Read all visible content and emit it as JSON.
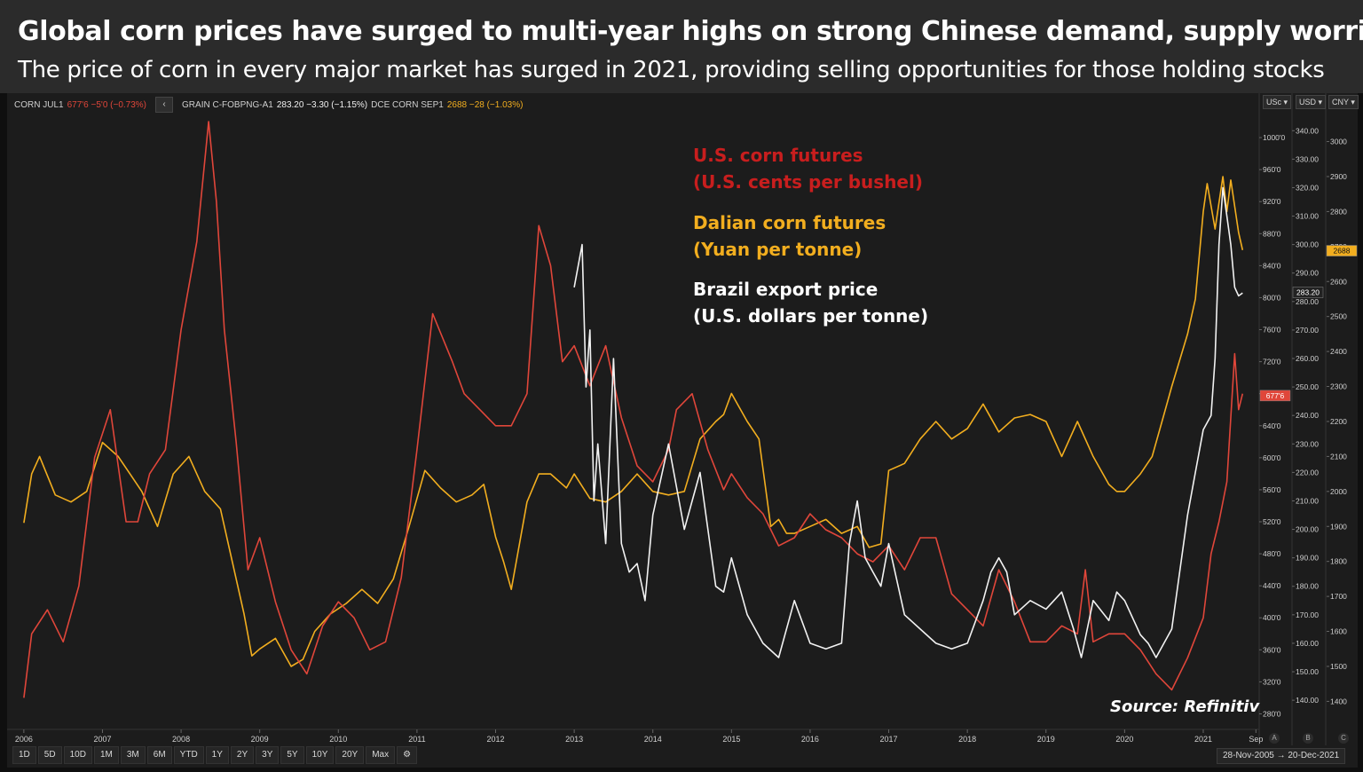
{
  "header": {
    "title": "Global corn prices have surged to multi-year highs on strong Chinese demand, supply worries",
    "subtitle": "The price of corn in every major market has surged in 2021, providing selling opportunities for those holding stocks"
  },
  "legend_bar": {
    "corn_symbol": "CORN JUL1",
    "corn_values": "677'6 −5'0 (−0.73%)",
    "collapse_icon": "chevron-left-icon",
    "grain_symbol": "GRAIN C-FOBPNG-A1",
    "grain_values": "283.20 −3.30 (−1.15%)",
    "dce_symbol": "DCE CORN SEP1",
    "dce_values": "2688 −28 (−1.03%)"
  },
  "annotations": {
    "us_line1": "U.S. corn futures",
    "us_line2": "(U.S. cents per bushel)",
    "dalian_line1": "Dalian corn futures",
    "dalian_line2": "(Yuan per tonne)",
    "brazil_line1": "Brazil export price",
    "brazil_line2": "(U.S. dollars per tonne)",
    "source": "Source: Refinitiv"
  },
  "axes_heads": {
    "a": "USc",
    "b": "USD",
    "c": "CNY"
  },
  "axes_feet": {
    "a": "A",
    "b": "B",
    "c": "C"
  },
  "range_buttons": [
    "1D",
    "5D",
    "10D",
    "1M",
    "3M",
    "6M",
    "YTD",
    "1Y",
    "2Y",
    "3Y",
    "5Y",
    "10Y",
    "20Y",
    "Max"
  ],
  "settings_icon": "gear-icon",
  "date_range": "28-Nov-2005  →  20-Dec-2021",
  "colors": {
    "us": "#e0463a",
    "dalian": "#f2ae1f",
    "brazil": "#f2f2f2",
    "us_label": "#c81e1e",
    "dalian_label": "#f2ae1f",
    "brazil_label": "#ffffff"
  },
  "chart_data": {
    "type": "line",
    "x_tick_labels": [
      "2006",
      "2007",
      "2008",
      "2009",
      "2010",
      "2011",
      "2012",
      "2013",
      "2014",
      "2015",
      "2016",
      "2017",
      "2018",
      "2019",
      "2020",
      "2021",
      "Sep"
    ],
    "x_range": [
      2005.9,
      2021.7
    ],
    "grid": false,
    "axes": {
      "usc": {
        "ticks": [
          "2800",
          "3200",
          "3600",
          "4000",
          "4400",
          "4800",
          "5200",
          "5600",
          "6000",
          "6400",
          "6800",
          "7200",
          "7600",
          "8000",
          "8400",
          "8800",
          "9200",
          "9600",
          "10000"
        ],
        "range": [
          2650,
          10300
        ],
        "last_label": "677'6"
      },
      "usd": {
        "ticks": [
          "140.00",
          "150.00",
          "160.00",
          "170.00",
          "180.00",
          "190.00",
          "200.00",
          "210.00",
          "220.00",
          "230.00",
          "240.00",
          "250.00",
          "260.00",
          "270.00",
          "280.00",
          "290.00",
          "300.00",
          "310.00",
          "320.00",
          "330.00",
          "340.00"
        ],
        "range": [
          131,
          346
        ],
        "last_label": "283.20"
      },
      "cny": {
        "ticks": [
          "1400",
          "1500",
          "1600",
          "1700",
          "1800",
          "1900",
          "2000",
          "2100",
          "2200",
          "2300",
          "2400",
          "2500",
          "2600",
          "2700",
          "2800",
          "2900",
          "3000"
        ],
        "range": [
          1330,
          3080
        ],
        "last_label": "2688"
      }
    },
    "series": [
      {
        "name": "CORN JUL1",
        "axis": "usc",
        "x": [
          2006.0,
          2006.1,
          2006.3,
          2006.5,
          2006.7,
          2006.9,
          2007.1,
          2007.3,
          2007.45,
          2007.6,
          2007.8,
          2008.0,
          2008.2,
          2008.35,
          2008.45,
          2008.55,
          2008.7,
          2008.85,
          2009.0,
          2009.2,
          2009.4,
          2009.6,
          2009.8,
          2010.0,
          2010.2,
          2010.4,
          2010.6,
          2010.8,
          2011.0,
          2011.2,
          2011.45,
          2011.6,
          2011.8,
          2012.0,
          2012.2,
          2012.4,
          2012.55,
          2012.7,
          2012.85,
          2013.0,
          2013.2,
          2013.4,
          2013.6,
          2013.8,
          2014.0,
          2014.2,
          2014.3,
          2014.5,
          2014.7,
          2014.9,
          2015.0,
          2015.2,
          2015.4,
          2015.6,
          2015.8,
          2016.0,
          2016.2,
          2016.4,
          2016.6,
          2016.8,
          2017.0,
          2017.2,
          2017.4,
          2017.6,
          2017.8,
          2018.0,
          2018.2,
          2018.4,
          2018.6,
          2018.8,
          2019.0,
          2019.2,
          2019.4,
          2019.5,
          2019.6,
          2019.8,
          2020.0,
          2020.2,
          2020.4,
          2020.6,
          2020.8,
          2021.0,
          2021.1,
          2021.2,
          2021.3,
          2021.35,
          2021.4,
          2021.45,
          2021.5
        ],
        "y": [
          3000,
          3800,
          4100,
          3700,
          4400,
          6000,
          6600,
          5200,
          5200,
          5800,
          6100,
          7600,
          8700,
          10200,
          9200,
          7600,
          6200,
          4600,
          5000,
          4200,
          3600,
          3300,
          3900,
          4200,
          4000,
          3600,
          3700,
          4500,
          6100,
          7800,
          7200,
          6800,
          6600,
          6400,
          6400,
          6800,
          8900,
          8400,
          7200,
          7400,
          6900,
          7400,
          6500,
          5900,
          5700,
          6100,
          6600,
          6800,
          6100,
          5600,
          5800,
          5500,
          5300,
          4900,
          5000,
          5300,
          5100,
          5000,
          4800,
          4700,
          4900,
          4600,
          5000,
          5000,
          4300,
          4100,
          3900,
          4600,
          4200,
          3700,
          3700,
          3900,
          3800,
          4600,
          3700,
          3800,
          3800,
          3600,
          3300,
          3100,
          3500,
          4000,
          4800,
          5200,
          5700,
          6500,
          7300,
          6600,
          6800
        ]
      },
      {
        "name": "GRAIN C-FOBPNG-A1",
        "axis": "usd",
        "x": [
          2013.0,
          2013.1,
          2013.15,
          2013.2,
          2013.25,
          2013.3,
          2013.4,
          2013.5,
          2013.6,
          2013.7,
          2013.8,
          2013.9,
          2014.0,
          2014.2,
          2014.3,
          2014.4,
          2014.5,
          2014.6,
          2014.8,
          2014.9,
          2015.0,
          2015.2,
          2015.4,
          2015.6,
          2015.8,
          2016.0,
          2016.2,
          2016.4,
          2016.5,
          2016.6,
          2016.7,
          2016.8,
          2016.9,
          2017.0,
          2017.2,
          2017.4,
          2017.6,
          2017.8,
          2018.0,
          2018.2,
          2018.3,
          2018.4,
          2018.5,
          2018.6,
          2018.8,
          2019.0,
          2019.2,
          2019.35,
          2019.45,
          2019.6,
          2019.8,
          2019.9,
          2020.0,
          2020.2,
          2020.3,
          2020.4,
          2020.6,
          2020.7,
          2020.8,
          2020.9,
          2021.0,
          2021.1,
          2021.15,
          2021.2,
          2021.25,
          2021.3,
          2021.35,
          2021.4,
          2021.45,
          2021.5
        ],
        "y": [
          285,
          300,
          250,
          270,
          210,
          230,
          195,
          260,
          195,
          185,
          188,
          175,
          205,
          230,
          215,
          200,
          210,
          220,
          180,
          178,
          190,
          170,
          160,
          155,
          175,
          160,
          158,
          160,
          195,
          210,
          190,
          185,
          180,
          195,
          170,
          165,
          160,
          158,
          160,
          175,
          185,
          190,
          185,
          170,
          175,
          172,
          178,
          165,
          155,
          175,
          168,
          178,
          175,
          163,
          160,
          155,
          165,
          185,
          205,
          220,
          235,
          240,
          260,
          300,
          320,
          310,
          300,
          285,
          282,
          283
        ]
      },
      {
        "name": "DCE CORN SEP1",
        "axis": "cny",
        "x": [
          2006.0,
          2006.1,
          2006.2,
          2006.4,
          2006.6,
          2006.8,
          2007.0,
          2007.2,
          2007.35,
          2007.5,
          2007.7,
          2007.9,
          2008.1,
          2008.3,
          2008.5,
          2008.65,
          2008.8,
          2008.9,
          2009.0,
          2009.2,
          2009.4,
          2009.55,
          2009.7,
          2009.9,
          2010.1,
          2010.3,
          2010.5,
          2010.7,
          2010.9,
          2011.1,
          2011.3,
          2011.5,
          2011.7,
          2011.85,
          2012.0,
          2012.1,
          2012.2,
          2012.4,
          2012.55,
          2012.7,
          2012.9,
          2013.0,
          2013.2,
          2013.4,
          2013.6,
          2013.8,
          2014.0,
          2014.2,
          2014.4,
          2014.6,
          2014.8,
          2014.9,
          2015.0,
          2015.2,
          2015.35,
          2015.5,
          2015.6,
          2015.7,
          2015.8,
          2016.0,
          2016.2,
          2016.4,
          2016.6,
          2016.75,
          2016.9,
          2017.0,
          2017.2,
          2017.4,
          2017.6,
          2017.8,
          2018.0,
          2018.2,
          2018.4,
          2018.6,
          2018.8,
          2019.0,
          2019.2,
          2019.4,
          2019.6,
          2019.8,
          2019.9,
          2020.0,
          2020.2,
          2020.35,
          2020.5,
          2020.6,
          2020.8,
          2020.9,
          2021.0,
          2021.05,
          2021.15,
          2021.25,
          2021.3,
          2021.35,
          2021.45,
          2021.5
        ],
        "y": [
          1910,
          2050,
          2100,
          1990,
          1970,
          2000,
          2140,
          2100,
          2050,
          2000,
          1900,
          2050,
          2100,
          2000,
          1950,
          1800,
          1650,
          1530,
          1550,
          1580,
          1500,
          1520,
          1600,
          1650,
          1680,
          1720,
          1680,
          1750,
          1900,
          2060,
          2010,
          1970,
          1990,
          2020,
          1870,
          1800,
          1720,
          1970,
          2050,
          2050,
          2010,
          2050,
          1980,
          1970,
          2000,
          2050,
          2000,
          1990,
          2000,
          2150,
          2200,
          2220,
          2280,
          2200,
          2150,
          1900,
          1920,
          1880,
          1880,
          1900,
          1920,
          1880,
          1900,
          1840,
          1850,
          2060,
          2080,
          2150,
          2200,
          2150,
          2180,
          2250,
          2170,
          2210,
          2220,
          2200,
          2100,
          2200,
          2100,
          2020,
          2000,
          2000,
          2050,
          2100,
          2220,
          2300,
          2450,
          2550,
          2800,
          2880,
          2750,
          2900,
          2800,
          2890,
          2740,
          2690
        ]
      }
    ]
  }
}
